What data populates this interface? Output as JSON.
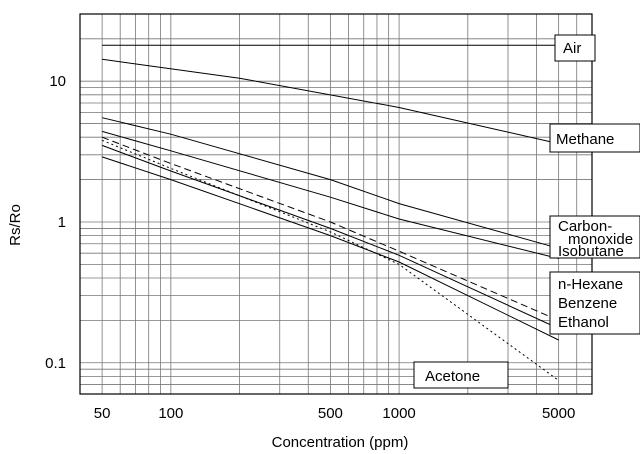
{
  "chart_data": {
    "type": "line",
    "title": "",
    "xlabel": "Concentration (ppm)",
    "ylabel": "Rs/Ro",
    "x_scale": "log",
    "y_scale": "log",
    "xlim": [
      40,
      7000
    ],
    "ylim": [
      0.06,
      30
    ],
    "grid": true,
    "x_ticks": [
      {
        "value": 50,
        "label": "50"
      },
      {
        "value": 100,
        "label": "100"
      },
      {
        "value": 500,
        "label": "500"
      },
      {
        "value": 1000,
        "label": "1000"
      },
      {
        "value": 5000,
        "label": "5000"
      }
    ],
    "y_ticks": [
      {
        "value": 0.1,
        "label": "0.1"
      },
      {
        "value": 1,
        "label": "1"
      },
      {
        "value": 10,
        "label": "10"
      }
    ],
    "series": [
      {
        "name": "Air",
        "style": "solid",
        "x": [
          50,
          5000
        ],
        "y": [
          18,
          18
        ]
      },
      {
        "name": "Methane",
        "style": "solid",
        "x": [
          50,
          200,
          1000,
          5000
        ],
        "y": [
          14.3,
          10.5,
          6.5,
          3.6
        ]
      },
      {
        "name": "Carbon-monoxide",
        "style": "solid",
        "x": [
          50,
          100,
          500,
          1000,
          5000
        ],
        "y": [
          5.5,
          4.2,
          2.0,
          1.35,
          0.65
        ]
      },
      {
        "name": "Isobutane",
        "style": "solid",
        "x": [
          50,
          100,
          500,
          1000,
          5000
        ],
        "y": [
          4.4,
          3.2,
          1.5,
          1.05,
          0.55
        ]
      },
      {
        "name": "n-Hexane",
        "style": "dashed",
        "x": [
          50,
          100,
          500,
          1000,
          5000
        ],
        "y": [
          4.0,
          2.6,
          1.0,
          0.62,
          0.2
        ]
      },
      {
        "name": "Benzene",
        "style": "solid",
        "x": [
          50,
          100,
          500,
          1000,
          5000
        ],
        "y": [
          3.5,
          2.3,
          0.9,
          0.58,
          0.175
        ]
      },
      {
        "name": "Ethanol",
        "style": "solid",
        "x": [
          50,
          100,
          500,
          1000,
          5000
        ],
        "y": [
          2.9,
          2.0,
          0.8,
          0.52,
          0.145
        ]
      },
      {
        "name": "Acetone",
        "style": "dotted",
        "x": [
          50,
          100,
          500,
          1000,
          5000
        ],
        "y": [
          3.8,
          2.4,
          0.85,
          0.5,
          0.075
        ]
      }
    ],
    "labels": [
      {
        "id": "air",
        "lines": [
          "Air"
        ],
        "boxed": true
      },
      {
        "id": "methane",
        "lines": [
          "Methane"
        ],
        "boxed": true
      },
      {
        "id": "carbon",
        "lines": [
          "Carbon-",
          "monoxide",
          "Isobutane"
        ],
        "boxed": true
      },
      {
        "id": "hexane",
        "lines": [
          "n-Hexane",
          "Benzene",
          "Ethanol"
        ],
        "boxed": true
      },
      {
        "id": "acetone",
        "lines": [
          "Acetone"
        ],
        "boxed": true
      }
    ]
  }
}
